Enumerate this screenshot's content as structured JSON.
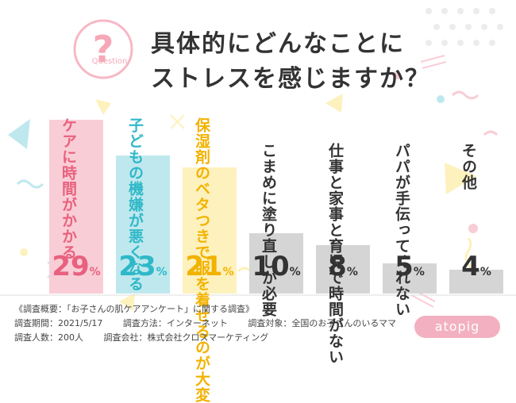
{
  "question_icon": {
    "symbol": "?",
    "ring_text": "Question"
  },
  "title": {
    "line1": "具体的にどんなことに",
    "line2": "ストレスを感じますか？"
  },
  "chart_data": {
    "type": "bar",
    "categories": [
      "ケアに時間がかかる",
      "子どもの機嫌が悪くなる",
      "保湿剤のベタつきで服を着せるのが大変",
      "こまめに塗り直しが必要",
      "仕事と家事と育児で時間がない",
      "パパが手伝ってくれない",
      "その他"
    ],
    "values": [
      29,
      23,
      21,
      10,
      8,
      5,
      4
    ],
    "unit": "%",
    "labels": [
      {
        "lines": [
          "ケアに時間が",
          "かかる"
        ]
      },
      {
        "lines": [
          "子どもの機嫌が",
          "悪くなる"
        ]
      },
      {
        "lines": [
          "保湿剤のベタつきで",
          "服を着せるのが大変"
        ]
      },
      {
        "lines": [
          "こまめに",
          "塗り直しが必要"
        ]
      },
      {
        "lines": [
          "仕事と家事と",
          "育児で時間がない"
        ]
      },
      {
        "lines": [
          "パパが手伝って",
          "くれない"
        ]
      },
      {
        "lines": [
          "その他"
        ]
      }
    ],
    "colors": [
      "#f9cdd6",
      "#bfe8ee",
      "#fdf1bd",
      "#d5d5d5",
      "#d5d5d5",
      "#d5d5d5",
      "#d5d5d5"
    ],
    "label_colors": [
      "#e8617e",
      "#2fb8c8",
      "#f2b200",
      "#333333",
      "#333333",
      "#333333",
      "#333333"
    ],
    "ylim": [
      0,
      30
    ]
  },
  "footer": {
    "survey_title": "《調査概要：「お子さんの肌ケアアンケート」に関する調査》",
    "period": "調査期間：2021/5/17",
    "method": "調査方法：インターネット",
    "target": "調査対象：全国のお子さんのいるママ",
    "count": "調査人数：200人",
    "company": "調査会社：株式会社クロスマーケティング"
  },
  "logo": {
    "text": "atopig",
    "color": "#f3b0c0"
  }
}
